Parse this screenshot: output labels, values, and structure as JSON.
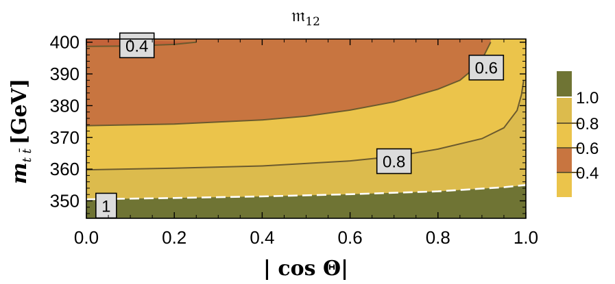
{
  "chart_data": {
    "type": "contour",
    "title": "𝔪",
    "title_sub": "12",
    "xlabel": "| cos Θ|",
    "ylabel_main": "m",
    "ylabel_sub": "t t̄",
    "ylabel_unit": "[GeV]",
    "xlim": [
      0.0,
      1.0
    ],
    "ylim": [
      344.5,
      401
    ],
    "x_ticks": [
      0.0,
      0.2,
      0.4,
      0.6,
      0.8,
      1.0
    ],
    "x_tick_labels": [
      "0.0",
      "0.2",
      "0.4",
      "0.6",
      "0.8",
      "1.0"
    ],
    "y_ticks": [
      350,
      360,
      370,
      380,
      390,
      400
    ],
    "y_tick_labels": [
      "350",
      "360",
      "370",
      "380",
      "390",
      "400"
    ],
    "regions": [
      {
        "name": "above-1.0",
        "color": "#6f7434"
      },
      {
        "name": "0.8-1.0",
        "color": "#dcbb4d"
      },
      {
        "name": "0.6-0.8",
        "color": "#ebc44b"
      },
      {
        "name": "0.4-0.6",
        "color": "#c87540"
      },
      {
        "name": "below-0.4",
        "color": "#c4633a"
      }
    ],
    "contours": [
      {
        "level": 1.0,
        "label": "1",
        "style": "dashed-white",
        "points": [
          [
            0.0,
            350.5
          ],
          [
            0.2,
            350.9
          ],
          [
            0.4,
            351.4
          ],
          [
            0.6,
            352.1
          ],
          [
            0.8,
            353.0
          ],
          [
            0.95,
            354.3
          ],
          [
            1.0,
            355.0
          ]
        ]
      },
      {
        "level": 0.8,
        "label": "0.8",
        "style": "solid",
        "points": [
          [
            0.0,
            359.8
          ],
          [
            0.2,
            360.3
          ],
          [
            0.4,
            361.0
          ],
          [
            0.6,
            362.6
          ],
          [
            0.7,
            364.0
          ],
          [
            0.8,
            366.3
          ],
          [
            0.9,
            369.6
          ],
          [
            0.95,
            373.0
          ],
          [
            0.98,
            378.5
          ],
          [
            0.99,
            383.5
          ],
          [
            0.995,
            388.0
          ]
        ]
      },
      {
        "level": 0.6,
        "label": "0.6",
        "style": "solid",
        "points": [
          [
            0.0,
            373.7
          ],
          [
            0.2,
            374.2
          ],
          [
            0.4,
            375.5
          ],
          [
            0.5,
            376.7
          ],
          [
            0.6,
            378.6
          ],
          [
            0.7,
            381.2
          ],
          [
            0.8,
            385.2
          ],
          [
            0.85,
            388.0
          ],
          [
            0.88,
            391.5
          ],
          [
            0.9,
            394.5
          ],
          [
            0.92,
            400.0
          ]
        ]
      },
      {
        "level": 0.4,
        "label": "0.4",
        "style": "solid",
        "points": [
          [
            0.0,
            398.7
          ],
          [
            0.1,
            398.8
          ],
          [
            0.2,
            399.3
          ],
          [
            0.25,
            400.0
          ]
        ]
      }
    ],
    "contour_labels": [
      {
        "text": "0.4",
        "x": 0.115,
        "y": 399.0
      },
      {
        "text": "0.6",
        "x": 0.91,
        "y": 392.0
      },
      {
        "text": "0.8",
        "x": 0.7,
        "y": 362.5
      },
      {
        "text": "1",
        "x": 0.045,
        "y": 348.5
      }
    ],
    "legend": {
      "placement": "right",
      "levels": [
        1.0,
        0.8,
        0.6,
        0.4
      ],
      "labels": [
        "1.0",
        "0.8",
        "0.6",
        "0.4"
      ],
      "colors_top_to_bottom": [
        "#6f7434",
        "#dcbb4d",
        "#ebc44b",
        "#c87540",
        "#ebc44b"
      ]
    }
  }
}
